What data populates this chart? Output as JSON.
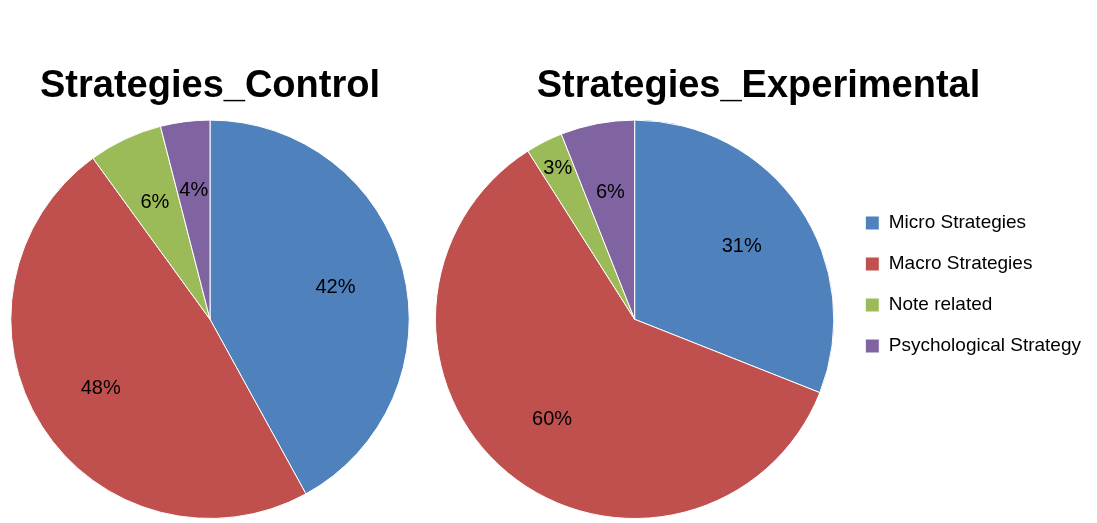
{
  "chart_data": [
    {
      "type": "pie",
      "title": "Strategies_Control",
      "categories": [
        null,
        null,
        null,
        null
      ],
      "values": [
        42,
        48,
        6,
        4
      ],
      "value_labels": [
        "42%",
        "48%",
        "6%",
        "4%"
      ],
      "colors": [
        "#4f81bd",
        "#c0504d",
        "#9bbb59",
        "#8064a2"
      ],
      "legend": false
    },
    {
      "type": "pie",
      "title": "Strategies_Experimental",
      "categories": [
        "Micro Strategies",
        "Macro Strategies",
        "Note related",
        "Psychological Strategy"
      ],
      "values": [
        31,
        60,
        3,
        6
      ],
      "value_labels": [
        "31%",
        "60%",
        "3%",
        "6%"
      ],
      "colors": [
        "#4f81bd",
        "#c0504d",
        "#9bbb59",
        "#8064a2"
      ],
      "legend": "right"
    }
  ]
}
